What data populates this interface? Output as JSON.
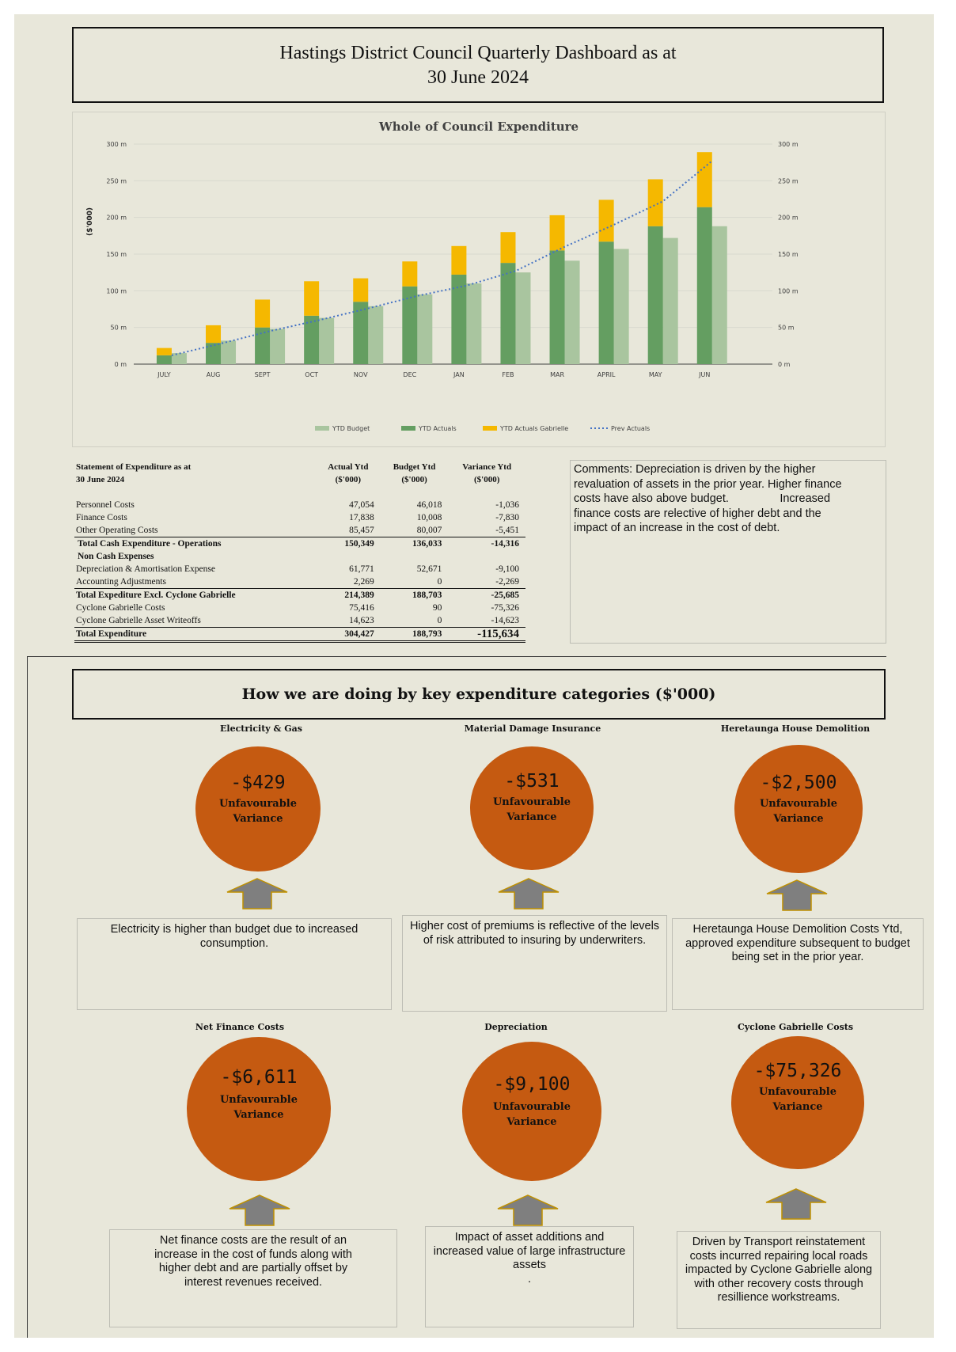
{
  "header": {
    "title_line1": "Hastings District Council Quarterly Dashboard as at",
    "title_line2": "30 June 2024"
  },
  "chart_data": {
    "type": "bar",
    "title": "Whole of Council Expenditure",
    "ylabel": "($'000)",
    "ylim": [
      0,
      300
    ],
    "y_ticks": [
      "0 m",
      "50 m",
      "100 m",
      "150 m",
      "200 m",
      "250 m",
      "300 m"
    ],
    "categories": [
      "JULY",
      "AUG",
      "SEPT",
      "OCT",
      "NOV",
      "DEC",
      "JAN",
      "FEB",
      "MAR",
      "APRIL",
      "MAY",
      "JUN"
    ],
    "series": [
      {
        "name": "YTD Budget",
        "values": [
          15,
          32,
          48,
          63,
          79,
          95,
          110,
          125,
          141,
          157,
          172,
          188
        ]
      },
      {
        "name": "YTD Actuals",
        "values": [
          12,
          29,
          50,
          66,
          85,
          106,
          122,
          138,
          155,
          167,
          188,
          214
        ]
      },
      {
        "name": "YTD Actuals Gabrielle",
        "values": [
          10,
          24,
          38,
          47,
          32,
          34,
          39,
          42,
          48,
          57,
          64,
          75
        ]
      },
      {
        "name": "Prev Actuals",
        "values": [
          12,
          28,
          45,
          60,
          76,
          93,
          107,
          127,
          160,
          190,
          222,
          277
        ]
      }
    ],
    "colors": {
      "budget": "#a9c59f",
      "actuals": "#649e61",
      "gabrielle": "#f5b800",
      "prev": "#4472c4"
    }
  },
  "statement": {
    "title_line1": "Statement of Expenditure as at",
    "title_line2": "30 June 2024",
    "col1_line1": "Actual Ytd",
    "col1_line2": "($'000)",
    "col2_line1": "Budget Ytd",
    "col2_line2": "($'000)",
    "col3_line1": "Variance Ytd",
    "col3_line2": "($'000)",
    "rows": [
      {
        "label": "Personnel Costs",
        "actual": "47,054",
        "budget": "46,018",
        "variance": "-1,036"
      },
      {
        "label": "Finance Costs",
        "actual": "17,838",
        "budget": "10,008",
        "variance": "-7,830"
      },
      {
        "label": "Other Operating Costs",
        "actual": "85,457",
        "budget": "80,007",
        "variance": "-5,451"
      },
      {
        "label": "Total Cash Expenditure - Operations",
        "actual": "150,349",
        "budget": "136,033",
        "variance": "-14,316"
      },
      {
        "label": "Non Cash Expenses"
      },
      {
        "label": "Depreciation & Amortisation Expense",
        "actual": "61,771",
        "budget": "52,671",
        "variance": "-9,100"
      },
      {
        "label": "Accounting Adjustments",
        "actual": "2,269",
        "budget": "0",
        "variance": "-2,269"
      },
      {
        "label": "Total Expediture Excl. Cyclone Gabrielle",
        "actual": "214,389",
        "budget": "188,703",
        "variance": "-25,685"
      },
      {
        "label": "Cyclone Gabrielle Costs",
        "actual": "75,416",
        "budget": "90",
        "variance": "-75,326"
      },
      {
        "label": "Cyclone Gabrielle Asset Writeoffs",
        "actual": "14,623",
        "budget": "0",
        "variance": "-14,623"
      },
      {
        "label": "Total Expenditure",
        "actual": "304,427",
        "budget": "188,793",
        "variance": "-115,634"
      }
    ]
  },
  "comments": {
    "line1": "Comments: Depreciation is driven by the higher",
    "line2": "revaluation of assets in the prior year. Higher finance",
    "line3": "costs have also above budget.                Increased",
    "line4": "finance costs are relective of higher debt and the",
    "line5": "impact of an increase in the cost of debt."
  },
  "section": {
    "title": "How we are doing by key expenditure categories ($'000)"
  },
  "categories": [
    {
      "title": "Electricity & Gas",
      "amount": "-$429",
      "label1": "Unfavourable",
      "label2": "Variance",
      "note": "Electricity is higher than budget due to increased consumption."
    },
    {
      "title": "Material Damage Insurance",
      "amount": "-$531",
      "label1": "Unfavourable",
      "label2": "Variance",
      "note": "Higher cost of premiums is reflective of the levels of risk attributed to insuring by underwriters."
    },
    {
      "title": "Heretaunga House Demolition",
      "amount": "-$2,500",
      "label1": "Unfavourable",
      "label2": "Variance",
      "note": "Heretaunga House Demolition Costs Ytd, approved expenditure subsequent to budget being set in the prior year."
    },
    {
      "title": "Net Finance Costs",
      "amount": "-$6,611",
      "label1": "Unfavourable",
      "label2": "Variance",
      "note": "Net finance costs are the result of an increase in the cost of funds along with higher debt and are partially offset by interest revenues received."
    },
    {
      "title": "Depreciation",
      "amount": "-$9,100",
      "label1": "Unfavourable",
      "label2": "Variance",
      "note": "Impact of asset additions and increased value of large infrastructure assets\n."
    },
    {
      "title": "Cyclone Gabrielle Costs",
      "amount": "-$75,326",
      "label1": "Unfavourable",
      "label2": "Variance",
      "note": "Driven by Transport reinstatement costs incurred repairing local roads impacted by Cyclone Gabrielle along with other recovery costs through resillience workstreams."
    }
  ]
}
